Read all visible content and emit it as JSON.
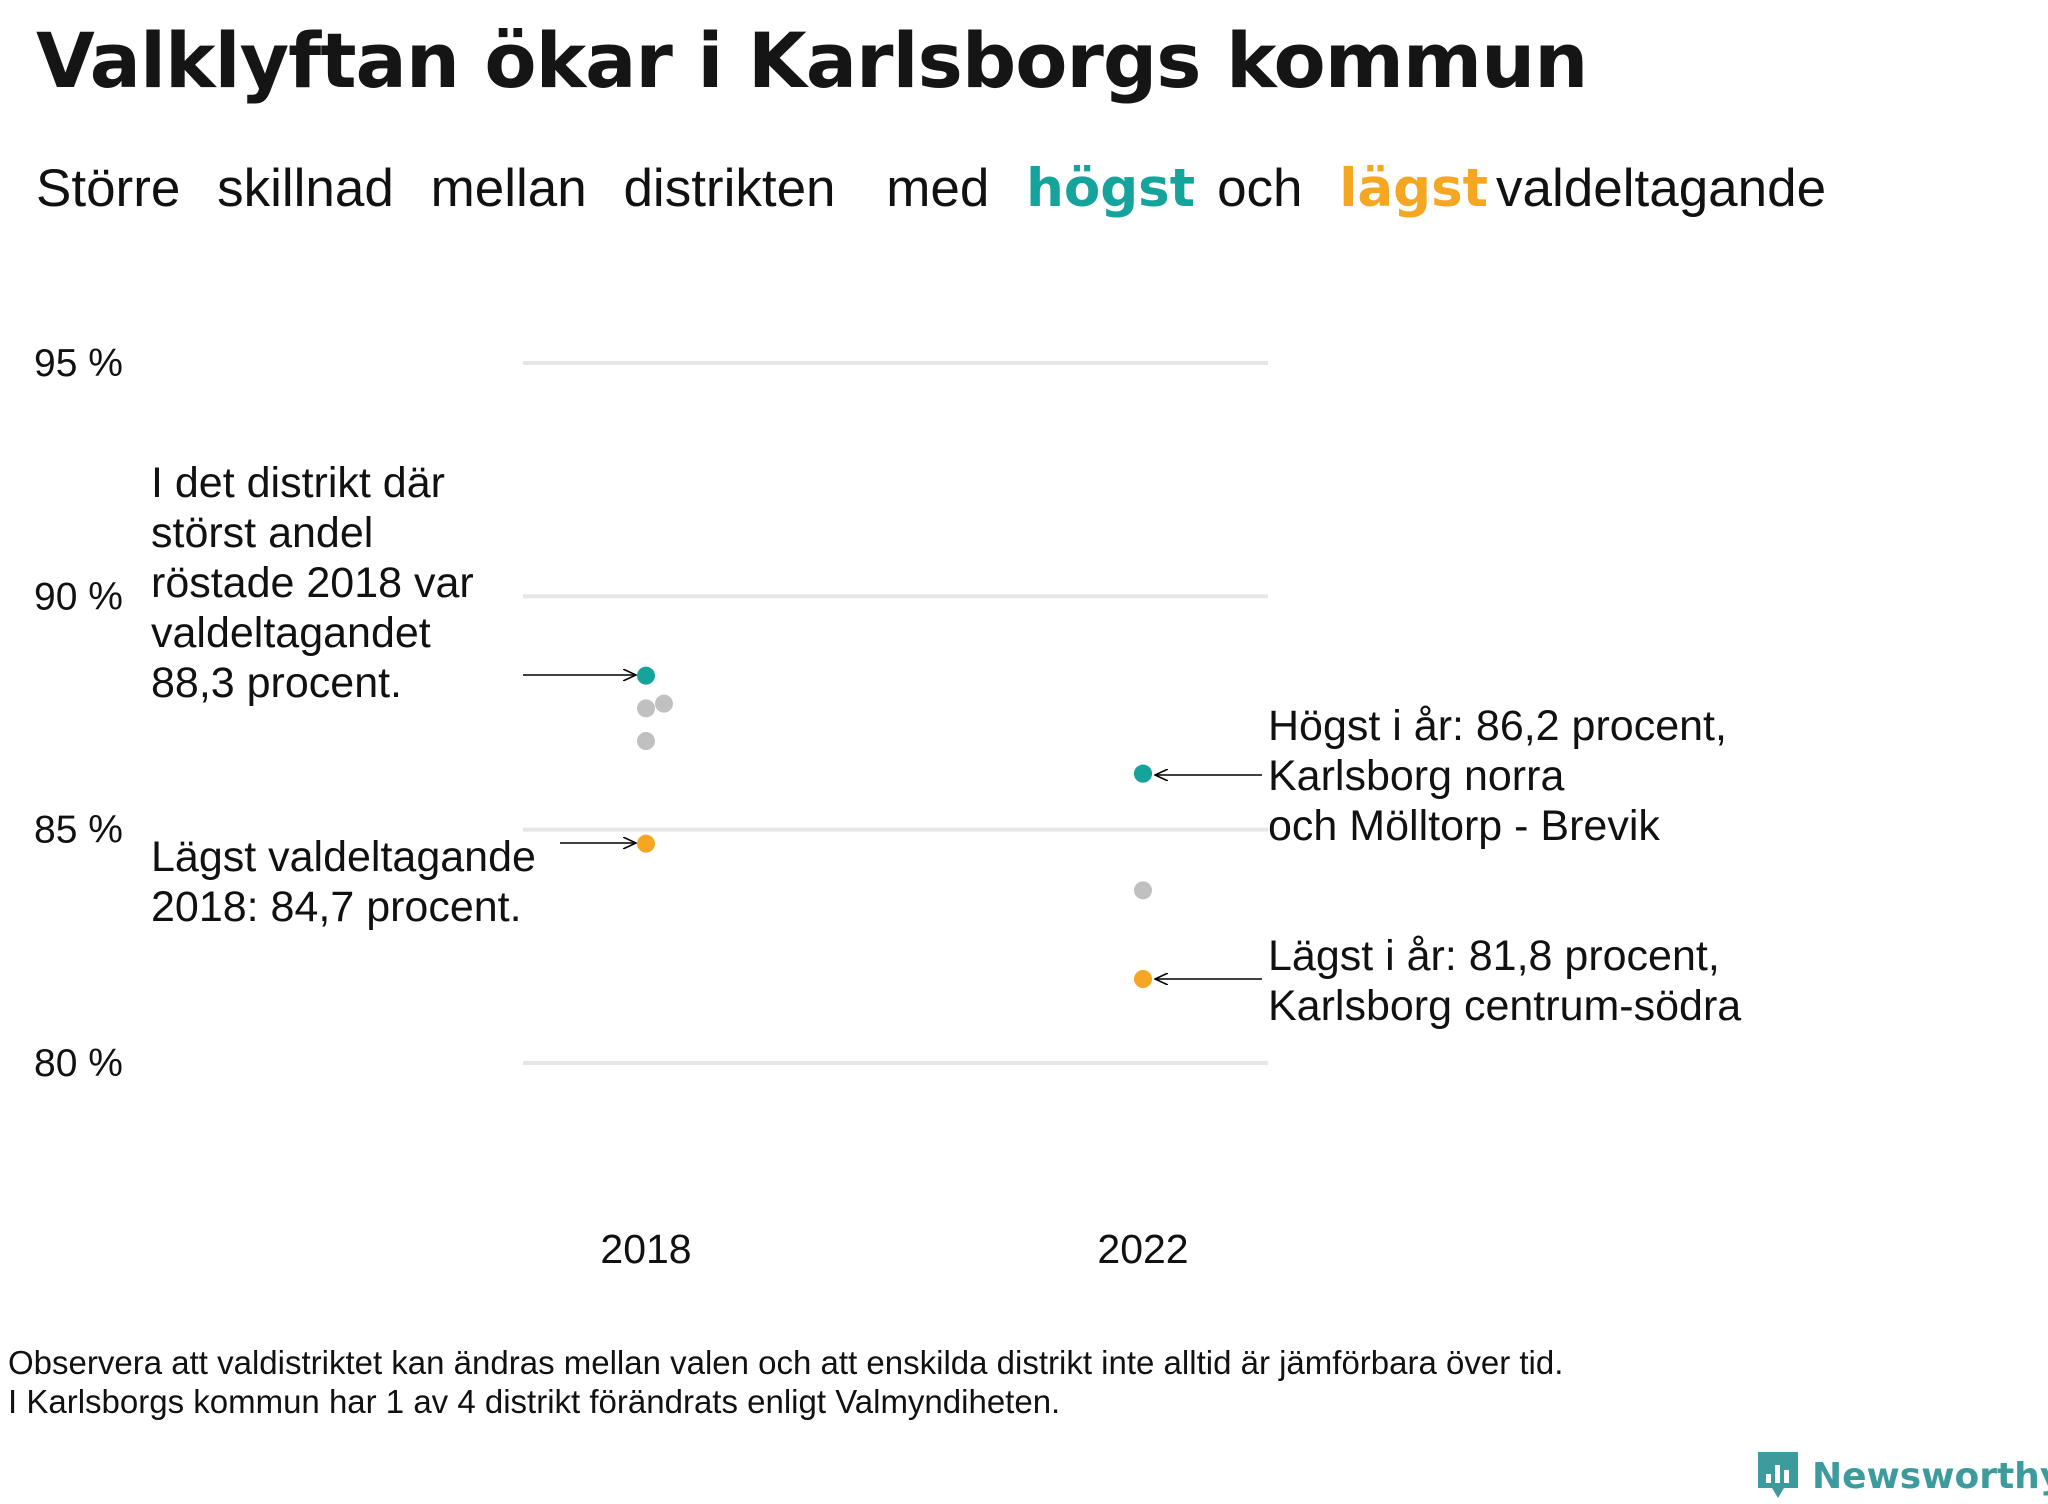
{
  "title": "Valklyftan ökar i Karlsborgs kommun",
  "subtitle": {
    "parts": [
      "Större",
      "skillnad",
      "mellan",
      "distrikten",
      "med"
    ],
    "highest_word": "högst",
    "and_word": "och",
    "lowest_word": "lägst",
    "tail": "valdeltagande"
  },
  "colors": {
    "highest": "#16a39b",
    "lowest": "#f5a623",
    "other": "#c0c0c0",
    "grid": "#e6e6e6",
    "logo": "#3d9b9e"
  },
  "chart_data": {
    "type": "scatter",
    "ylim": [
      80,
      95
    ],
    "yticks": [
      95,
      90,
      85,
      80
    ],
    "ytick_labels": [
      "95 %",
      "90 %",
      "85 %",
      "80 %"
    ],
    "categories": [
      "2018",
      "2022"
    ],
    "grid": true,
    "points": [
      {
        "year": "2018",
        "value": 88.3,
        "role": "highest"
      },
      {
        "year": "2018",
        "value": 87.6,
        "role": "other"
      },
      {
        "year": "2018",
        "value": 87.7,
        "role": "other"
      },
      {
        "year": "2018",
        "value": 86.9,
        "role": "other"
      },
      {
        "year": "2018",
        "value": 84.7,
        "role": "lowest"
      },
      {
        "year": "2022",
        "value": 86.2,
        "role": "highest"
      },
      {
        "year": "2022",
        "value": 86.2,
        "role": "highest"
      },
      {
        "year": "2022",
        "value": 83.7,
        "role": "other"
      },
      {
        "year": "2022",
        "value": 81.8,
        "role": "lowest"
      }
    ]
  },
  "annotations": {
    "high_2018": [
      "I det distrikt där",
      "störst andel",
      "röstade 2018 var",
      "valdeltagandet",
      "88,3 procent."
    ],
    "low_2018": [
      "Lägst valdeltagande",
      "2018: 84,7 procent."
    ],
    "high_2022": [
      "Högst i år: 86,2 procent,",
      "Karlsborg norra",
      "och Mölltorp - Brevik"
    ],
    "low_2022": [
      "Lägst i år: 81,8 procent,",
      "Karlsborg centrum-södra"
    ]
  },
  "footnote": [
    "Observera att valdistriktet kan ändras mellan valen och att enskilda distrikt inte alltid är jämförbara över tid.",
    "I Karlsborgs kommun har 1 av 4 distrikt förändrats enligt Valmyndiheten."
  ],
  "logo": {
    "text": "Newsworthy",
    "icon": "bar-chart-badge-icon"
  }
}
